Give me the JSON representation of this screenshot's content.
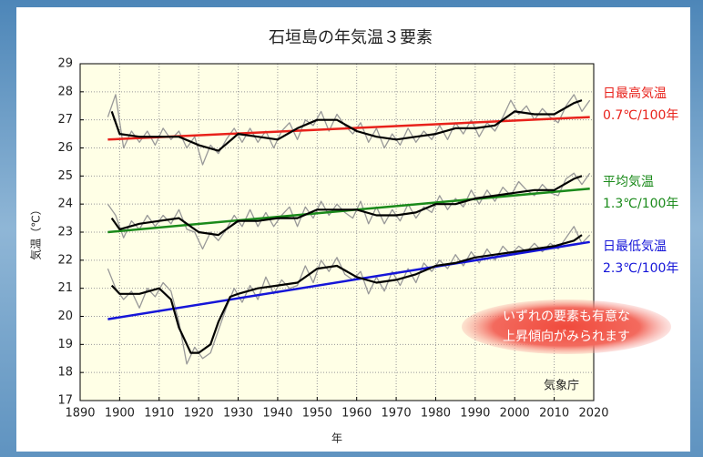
{
  "chart_data": {
    "type": "line",
    "title": "石垣島の年気温３要素",
    "xlabel": "年",
    "ylabel": "気温（℃）",
    "xlim": [
      1890,
      2020
    ],
    "ylim": [
      17,
      29
    ],
    "xticks": [
      1890,
      1900,
      1910,
      1920,
      1930,
      1940,
      1950,
      1960,
      1970,
      1980,
      1990,
      2000,
      2010,
      2020
    ],
    "yticks": [
      17,
      18,
      19,
      20,
      21,
      22,
      23,
      24,
      25,
      26,
      27,
      28,
      29
    ],
    "grid": true,
    "annotations": [
      "いずれの要素も有意な",
      "上昇傾向がみられます"
    ],
    "source": "気象庁",
    "groups": [
      {
        "name": "日最高気温",
        "trend_label": "0.7℃/100年",
        "color": "#e8221b",
        "annual": {
          "x": [
            1897,
            1899,
            1901,
            1903,
            1905,
            1907,
            1909,
            1911,
            1913,
            1915,
            1917,
            1919,
            1921,
            1923,
            1925,
            1927,
            1929,
            1931,
            1933,
            1935,
            1937,
            1939,
            1941,
            1943,
            1945,
            1947,
            1949,
            1951,
            1953,
            1955,
            1957,
            1959,
            1961,
            1963,
            1965,
            1967,
            1969,
            1971,
            1973,
            1975,
            1977,
            1979,
            1981,
            1983,
            1985,
            1987,
            1989,
            1991,
            1993,
            1995,
            1997,
            1999,
            2001,
            2003,
            2005,
            2007,
            2009,
            2011,
            2013,
            2015,
            2017,
            2019
          ],
          "values": [
            27.1,
            27.9,
            26.0,
            26.6,
            26.2,
            26.6,
            26.1,
            26.7,
            26.3,
            26.6,
            26.0,
            26.4,
            25.4,
            26.1,
            25.8,
            26.3,
            26.7,
            26.2,
            26.7,
            26.2,
            26.6,
            26.0,
            26.6,
            26.9,
            26.3,
            27.0,
            26.8,
            27.3,
            26.6,
            27.2,
            26.8,
            26.5,
            26.9,
            26.2,
            26.7,
            26.0,
            26.5,
            26.1,
            26.7,
            26.2,
            26.6,
            26.3,
            26.8,
            26.3,
            26.9,
            26.5,
            27.0,
            26.4,
            26.9,
            26.6,
            27.1,
            27.7,
            27.2,
            27.5,
            27.0,
            27.4,
            27.1,
            26.9,
            27.5,
            27.9,
            27.3,
            27.7
          ]
        },
        "smoothed": {
          "x": [
            1898,
            1900,
            1905,
            1910,
            1915,
            1920,
            1925,
            1930,
            1935,
            1940,
            1945,
            1950,
            1955,
            1960,
            1965,
            1970,
            1975,
            1980,
            1985,
            1990,
            1995,
            2000,
            2005,
            2010,
            2015,
            2017
          ],
          "values": [
            27.3,
            26.5,
            26.4,
            26.4,
            26.4,
            26.1,
            25.9,
            26.5,
            26.4,
            26.3,
            26.7,
            27.0,
            27.0,
            26.6,
            26.4,
            26.3,
            26.4,
            26.5,
            26.7,
            26.7,
            26.8,
            27.3,
            27.2,
            27.2,
            27.6,
            27.7
          ]
        },
        "trend": {
          "x": [
            1897,
            2019
          ],
          "values": [
            26.3,
            27.1
          ]
        }
      },
      {
        "name": "平均気温",
        "trend_label": "1.3℃/100年",
        "color": "#1a8a1a",
        "annual": {
          "x": [
            1897,
            1899,
            1901,
            1903,
            1905,
            1907,
            1909,
            1911,
            1913,
            1915,
            1917,
            1919,
            1921,
            1923,
            1925,
            1927,
            1929,
            1931,
            1933,
            1935,
            1937,
            1939,
            1941,
            1943,
            1945,
            1947,
            1949,
            1951,
            1953,
            1955,
            1957,
            1959,
            1961,
            1963,
            1965,
            1967,
            1969,
            1971,
            1973,
            1975,
            1977,
            1979,
            1981,
            1983,
            1985,
            1987,
            1989,
            1991,
            1993,
            1995,
            1997,
            1999,
            2001,
            2003,
            2005,
            2007,
            2009,
            2011,
            2013,
            2015,
            2017,
            2019
          ],
          "values": [
            24.0,
            23.6,
            22.8,
            23.4,
            23.1,
            23.6,
            23.2,
            23.6,
            23.3,
            23.8,
            23.1,
            23.0,
            22.4,
            23.0,
            22.7,
            23.1,
            23.6,
            23.2,
            23.8,
            23.2,
            23.7,
            23.2,
            23.6,
            23.9,
            23.2,
            23.9,
            23.5,
            24.1,
            23.6,
            24.0,
            23.7,
            23.5,
            24.1,
            23.3,
            23.9,
            23.3,
            23.8,
            23.4,
            24.0,
            23.5,
            23.9,
            23.7,
            24.3,
            23.8,
            24.2,
            23.9,
            24.5,
            24.0,
            24.5,
            24.1,
            24.6,
            24.3,
            24.8,
            24.5,
            24.3,
            24.7,
            24.4,
            24.3,
            24.9,
            25.1,
            24.7,
            25.1
          ]
        },
        "smoothed": {
          "x": [
            1898,
            1900,
            1905,
            1910,
            1915,
            1920,
            1925,
            1930,
            1935,
            1940,
            1945,
            1950,
            1955,
            1960,
            1965,
            1970,
            1975,
            1980,
            1985,
            1990,
            1995,
            2000,
            2005,
            2010,
            2015,
            2017
          ],
          "values": [
            23.5,
            23.1,
            23.3,
            23.4,
            23.5,
            23.0,
            22.9,
            23.4,
            23.4,
            23.5,
            23.5,
            23.8,
            23.8,
            23.8,
            23.6,
            23.6,
            23.7,
            24.0,
            24.0,
            24.2,
            24.3,
            24.4,
            24.5,
            24.5,
            24.9,
            25.0
          ]
        },
        "trend": {
          "x": [
            1897,
            2019
          ],
          "values": [
            23.0,
            24.55
          ]
        }
      },
      {
        "name": "日最低気温",
        "trend_label": "2.3℃/100年",
        "color": "#1515d8",
        "annual": {
          "x": [
            1897,
            1899,
            1901,
            1903,
            1905,
            1907,
            1909,
            1911,
            1913,
            1915,
            1917,
            1919,
            1921,
            1923,
            1925,
            1927,
            1929,
            1931,
            1933,
            1935,
            1937,
            1939,
            1941,
            1943,
            1945,
            1947,
            1949,
            1951,
            1953,
            1955,
            1957,
            1959,
            1961,
            1963,
            1965,
            1967,
            1969,
            1971,
            1973,
            1975,
            1977,
            1979,
            1981,
            1983,
            1985,
            1987,
            1989,
            1991,
            1993,
            1995,
            1997,
            1999,
            2001,
            2003,
            2005,
            2007,
            2009,
            2011,
            2013,
            2015,
            2017,
            2019
          ],
          "values": [
            21.7,
            21.0,
            20.6,
            20.9,
            20.3,
            21.0,
            20.7,
            21.2,
            20.9,
            19.8,
            18.3,
            18.9,
            18.5,
            18.7,
            19.5,
            20.3,
            21.0,
            20.5,
            21.1,
            20.6,
            21.4,
            20.8,
            21.3,
            21.0,
            21.1,
            21.8,
            21.2,
            22.0,
            21.6,
            22.1,
            21.5,
            21.3,
            21.6,
            20.8,
            21.4,
            20.9,
            21.6,
            21.1,
            21.7,
            21.2,
            21.9,
            21.6,
            22.0,
            21.7,
            22.2,
            21.8,
            22.3,
            21.9,
            22.4,
            22.0,
            22.5,
            22.2,
            22.5,
            22.3,
            22.6,
            22.3,
            22.6,
            22.4,
            22.8,
            23.2,
            22.6,
            22.9
          ]
        },
        "smoothed": {
          "x": [
            1898,
            1900,
            1905,
            1910,
            1913,
            1915,
            1918,
            1920,
            1923,
            1925,
            1928,
            1930,
            1935,
            1940,
            1945,
            1950,
            1955,
            1960,
            1965,
            1970,
            1975,
            1980,
            1985,
            1990,
            1995,
            2000,
            2005,
            2010,
            2015,
            2017
          ],
          "values": [
            21.1,
            20.8,
            20.8,
            21.0,
            20.6,
            19.6,
            18.7,
            18.7,
            19.0,
            19.8,
            20.7,
            20.8,
            21.0,
            21.1,
            21.2,
            21.7,
            21.8,
            21.4,
            21.2,
            21.3,
            21.5,
            21.8,
            21.9,
            22.1,
            22.2,
            22.3,
            22.4,
            22.5,
            22.7,
            22.9
          ]
        },
        "trend": {
          "x": [
            1897,
            2019
          ],
          "values": [
            19.9,
            22.65
          ]
        }
      }
    ]
  }
}
